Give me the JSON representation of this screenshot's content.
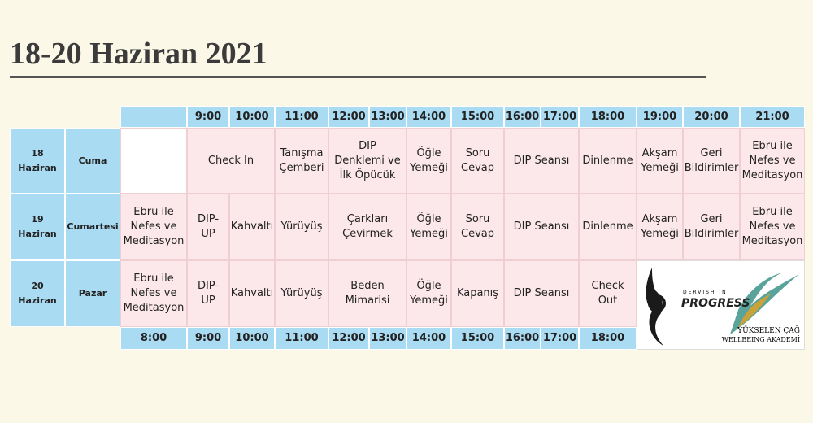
{
  "title": "18-20 Haziran 2021",
  "table": {
    "header_top": [
      "9:00",
      "10:00",
      "11:00",
      "12:00",
      "13:00",
      "14:00",
      "15:00",
      "16:00",
      "17:00",
      "18:00",
      "19:00",
      "20:00",
      "21:00"
    ],
    "header_bottom": [
      "8:00",
      "9:00",
      "10:00",
      "11:00",
      "12:00",
      "13:00",
      "14:00",
      "15:00",
      "16:00",
      "17:00",
      "18:00"
    ],
    "rows": [
      {
        "date": "18 Haziran",
        "day": "Cuma",
        "cells": [
          "Check In",
          "Tanışma Çemberi",
          "DIP Denklemi ve İlk Öpücük",
          "Öğle Yemeği",
          "Soru Cevap",
          "DIP Seansı",
          "Dinlenme",
          "Akşam Yemeği",
          "Geri Bildirimler",
          "Ebru ile Nefes ve Meditasyon"
        ]
      },
      {
        "date": "19 Haziran",
        "day": "Cumartesi",
        "cells": [
          "Ebru ile Nefes ve Meditasyon",
          "DIP-UP",
          "Kahvaltı",
          "Yürüyüş",
          "Çarkları Çevirmek",
          "Öğle Yemeği",
          "Soru Cevap",
          "DIP Seansı",
          "Dinlenme",
          "Akşam Yemeği",
          "Geri Bildirimler",
          "Ebru ile Nefes ve Meditasyon"
        ]
      },
      {
        "date": "20 Haziran",
        "day": "Pazar",
        "cells": [
          "Ebru ile Nefes ve Meditasyon",
          "DIP-UP",
          "Kahvaltı",
          "Yürüyüş",
          "Beden Mimarisi",
          "Öğle Yemeği",
          "Kapanış",
          "DIP Seansı",
          "Check Out"
        ]
      }
    ]
  },
  "logo": {
    "top": "DERVISH IN",
    "main": "PROGRESS",
    "line1": "YÜKSELEN ÇAĞ",
    "line2": "WELLBEING AKADEMİ"
  }
}
